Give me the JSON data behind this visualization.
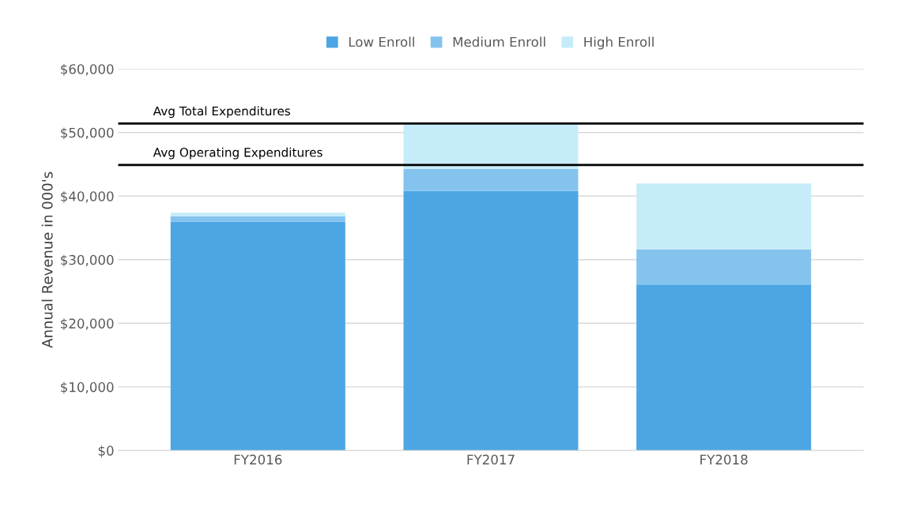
{
  "chart_data": {
    "type": "bar",
    "stacked": true,
    "ylabel": "Annual Revenue in 000's",
    "categories": [
      "FY2016",
      "FY2017",
      "FY2018"
    ],
    "series": [
      {
        "name": "Low Enroll",
        "color": "#4ba6e3",
        "values": [
          36000,
          40800,
          26100
        ]
      },
      {
        "name": "Medium Enroll",
        "color": "#85c3ef",
        "values": [
          800,
          3500,
          5500
        ]
      },
      {
        "name": "High Enroll",
        "color": "#c6ecf9",
        "values": [
          600,
          7000,
          10400
        ]
      }
    ],
    "ylim": [
      0,
      60000
    ],
    "yticks": [
      {
        "value": 0,
        "label": "$0"
      },
      {
        "value": 10000,
        "label": "$10,000"
      },
      {
        "value": 20000,
        "label": "$20,000"
      },
      {
        "value": 30000,
        "label": "$30,000"
      },
      {
        "value": 40000,
        "label": "$40,000"
      },
      {
        "value": 50000,
        "label": "$50,000"
      },
      {
        "value": 60000,
        "label": "$60,000"
      }
    ],
    "ref_lines": [
      {
        "axis": "y",
        "value": 51400,
        "label": "Avg Total Expenditures",
        "color": "#000000"
      },
      {
        "axis": "y",
        "value": 44900,
        "label": "Avg Operating Expenditures",
        "color": "#000000"
      }
    ],
    "grid": "y",
    "legend": "top"
  }
}
